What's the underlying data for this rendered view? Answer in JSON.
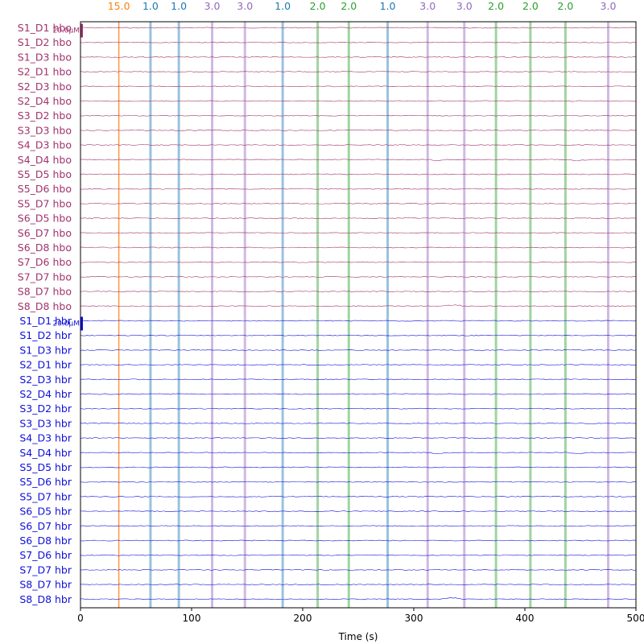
{
  "chart_data": {
    "type": "line",
    "xlabel": "Time (s)",
    "xlim": [
      0,
      500
    ],
    "x_ticks": [
      0,
      100,
      200,
      300,
      400,
      500
    ],
    "hbo_color": "#a0336b",
    "hbr_color": "#1010dd",
    "channels": [
      {
        "name": "S1_D1 hbo",
        "kind": "hbo"
      },
      {
        "name": "S1_D2 hbo",
        "kind": "hbo"
      },
      {
        "name": "S1_D3 hbo",
        "kind": "hbo"
      },
      {
        "name": "S2_D1 hbo",
        "kind": "hbo"
      },
      {
        "name": "S2_D3 hbo",
        "kind": "hbo"
      },
      {
        "name": "S2_D4 hbo",
        "kind": "hbo"
      },
      {
        "name": "S3_D2 hbo",
        "kind": "hbo"
      },
      {
        "name": "S3_D3 hbo",
        "kind": "hbo"
      },
      {
        "name": "S4_D3 hbo",
        "kind": "hbo"
      },
      {
        "name": "S4_D4 hbo",
        "kind": "hbo"
      },
      {
        "name": "S5_D5 hbo",
        "kind": "hbo"
      },
      {
        "name": "S5_D6 hbo",
        "kind": "hbo"
      },
      {
        "name": "S5_D7 hbo",
        "kind": "hbo"
      },
      {
        "name": "S6_D5 hbo",
        "kind": "hbo"
      },
      {
        "name": "S6_D7 hbo",
        "kind": "hbo"
      },
      {
        "name": "S6_D8 hbo",
        "kind": "hbo"
      },
      {
        "name": "S7_D6 hbo",
        "kind": "hbo"
      },
      {
        "name": "S7_D7 hbo",
        "kind": "hbo"
      },
      {
        "name": "S8_D7 hbo",
        "kind": "hbo"
      },
      {
        "name": "S8_D8 hbo",
        "kind": "hbo"
      },
      {
        "name": "S1_D1 hbr",
        "kind": "hbr"
      },
      {
        "name": "S1_D2 hbr",
        "kind": "hbr"
      },
      {
        "name": "S1_D3 hbr",
        "kind": "hbr"
      },
      {
        "name": "S2_D1 hbr",
        "kind": "hbr"
      },
      {
        "name": "S2_D3 hbr",
        "kind": "hbr"
      },
      {
        "name": "S2_D4 hbr",
        "kind": "hbr"
      },
      {
        "name": "S3_D2 hbr",
        "kind": "hbr"
      },
      {
        "name": "S3_D3 hbr",
        "kind": "hbr"
      },
      {
        "name": "S4_D3 hbr",
        "kind": "hbr"
      },
      {
        "name": "S4_D4 hbr",
        "kind": "hbr"
      },
      {
        "name": "S5_D5 hbr",
        "kind": "hbr"
      },
      {
        "name": "S5_D6 hbr",
        "kind": "hbr"
      },
      {
        "name": "S5_D7 hbr",
        "kind": "hbr"
      },
      {
        "name": "S6_D5 hbr",
        "kind": "hbr"
      },
      {
        "name": "S6_D7 hbr",
        "kind": "hbr"
      },
      {
        "name": "S6_D8 hbr",
        "kind": "hbr"
      },
      {
        "name": "S7_D6 hbr",
        "kind": "hbr"
      },
      {
        "name": "S7_D7 hbr",
        "kind": "hbr"
      },
      {
        "name": "S8_D7 hbr",
        "kind": "hbr"
      },
      {
        "name": "S8_D8 hbr",
        "kind": "hbr"
      }
    ],
    "annotations": [
      {
        "time": 34.5,
        "label": "15.0",
        "color": "#ff7f0e"
      },
      {
        "time": 63.0,
        "label": "1.0",
        "color": "#1f77b4"
      },
      {
        "time": 88.5,
        "label": "1.0",
        "color": "#1f77b4"
      },
      {
        "time": 118.5,
        "label": "3.0",
        "color": "#9467bd"
      },
      {
        "time": 148.0,
        "label": "3.0",
        "color": "#9467bd"
      },
      {
        "time": 182.0,
        "label": "1.0",
        "color": "#1f77b4"
      },
      {
        "time": 213.5,
        "label": "2.0",
        "color": "#2ca02c"
      },
      {
        "time": 241.5,
        "label": "2.0",
        "color": "#2ca02c"
      },
      {
        "time": 276.5,
        "label": "1.0",
        "color": "#1f77b4"
      },
      {
        "time": 312.5,
        "label": "3.0",
        "color": "#9467bd"
      },
      {
        "time": 345.5,
        "label": "3.0",
        "color": "#9467bd"
      },
      {
        "time": 374.0,
        "label": "2.0",
        "color": "#2ca02c"
      },
      {
        "time": 405.0,
        "label": "2.0",
        "color": "#2ca02c"
      },
      {
        "time": 436.5,
        "label": "2.0",
        "color": "#2ca02c"
      },
      {
        "time": 475.0,
        "label": "3.0",
        "color": "#9467bd"
      }
    ],
    "scale_bar_labels": [
      "20.0µM",
      "20.0µM"
    ],
    "grid": false
  }
}
